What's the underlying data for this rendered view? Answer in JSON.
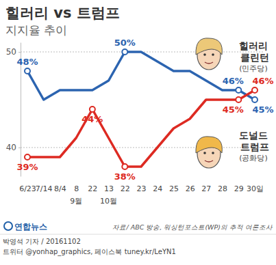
{
  "chart_data": {
    "type": "line",
    "title": "힐러리 vs 트럼프",
    "subtitle": "지지율 추이",
    "categories": [
      "6/23",
      "7/14",
      "8/4",
      "8",
      "22",
      "13",
      "22",
      "23",
      "24",
      "25",
      "26",
      "27",
      "28",
      "29",
      "30일"
    ],
    "annotations": [
      {
        "text": "9월",
        "x": 3
      },
      {
        "text": "10월",
        "x": 5
      }
    ],
    "series": [
      {
        "name": "힐러리 클린턴",
        "party": "(민주당)",
        "color": "#2c64b0",
        "values": [
          48,
          45,
          46,
          46,
          46,
          47,
          50,
          50,
          49,
          48,
          48,
          47,
          46,
          46,
          45
        ],
        "value_labels": [
          "48%",
          null,
          null,
          null,
          null,
          null,
          "50%",
          null,
          null,
          null,
          null,
          null,
          null,
          "46%",
          "45%"
        ]
      },
      {
        "name": "도널드 트럼프",
        "party": "(공화당)",
        "color": "#dd2a22",
        "values": [
          39,
          39,
          39,
          41,
          44,
          41,
          38,
          38,
          40,
          42,
          43,
          45,
          45,
          45,
          46
        ],
        "value_labels": [
          "39%",
          null,
          null,
          null,
          "44%",
          null,
          "38%",
          null,
          null,
          null,
          null,
          null,
          null,
          "45%",
          "46%"
        ]
      }
    ],
    "ylim": [
      37,
      51
    ],
    "yticks": [
      40,
      50
    ],
    "grid": true,
    "data_labels": true,
    "marker": "circle",
    "source": "자료/ ABC 방송, 워싱턴포스트(WP)의 추적 여론조사",
    "credits": [
      "박영석 기자 / 20161102",
      "트위터 @yonhap_graphics, 페이스북 tuney.kr/LeYN1"
    ],
    "logo": "연합뉴스"
  }
}
